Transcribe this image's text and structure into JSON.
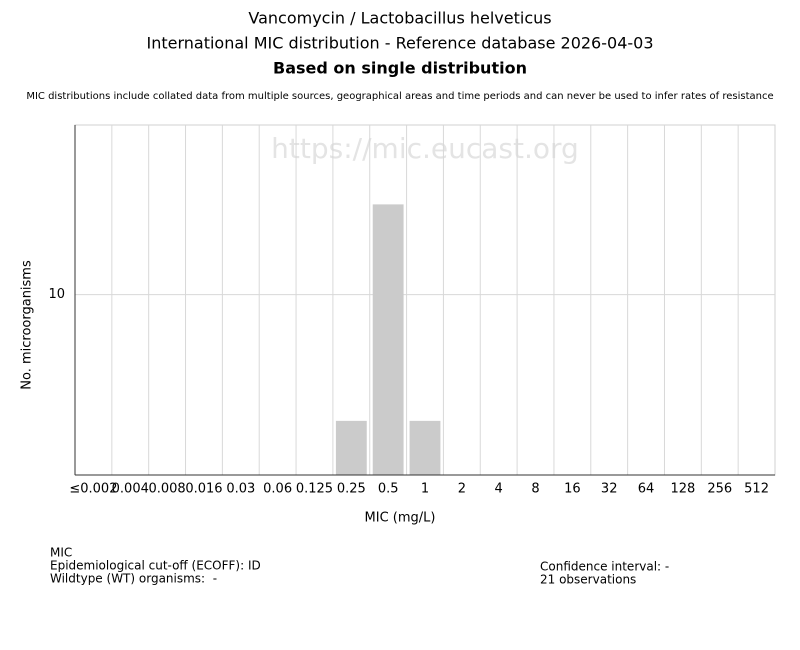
{
  "chart_data": {
    "type": "bar",
    "title": [
      "Vancomycin / Lactobacillus helveticus",
      "International MIC distribution - Reference database 2026-04-03"
    ],
    "subtitle": "Based on single distribution",
    "note": "MIC distributions include collated data from multiple sources, geographical areas and time periods and can never be used to infer rates of resistance",
    "watermark": "https://mic.eucast.org",
    "x_label": "MIC (mg/L)",
    "y_label": "No. microorganisms",
    "categories": [
      "≤0.002",
      "0.004",
      "0.008",
      "0.016",
      "0.03",
      "0.06",
      "0.125",
      "0.25",
      "0.5",
      "1",
      "2",
      "4",
      "8",
      "16",
      "32",
      "64",
      "128",
      "256",
      "512"
    ],
    "values": [
      0,
      0,
      0,
      0,
      0,
      0,
      0,
      3,
      15,
      3,
      0,
      0,
      0,
      0,
      0,
      0,
      0,
      0,
      0
    ],
    "color": "#cbcbcb",
    "ylim": [
      0,
      19.4
    ],
    "yticks": [
      10
    ],
    "grid": true,
    "footer_left": [
      "MIC",
      "Epidemiological cut-off (ECOFF): ID",
      "Wildtype (WT) organisms:  -"
    ],
    "footer_right": [
      "Confidence interval: -",
      "21 observations"
    ]
  }
}
